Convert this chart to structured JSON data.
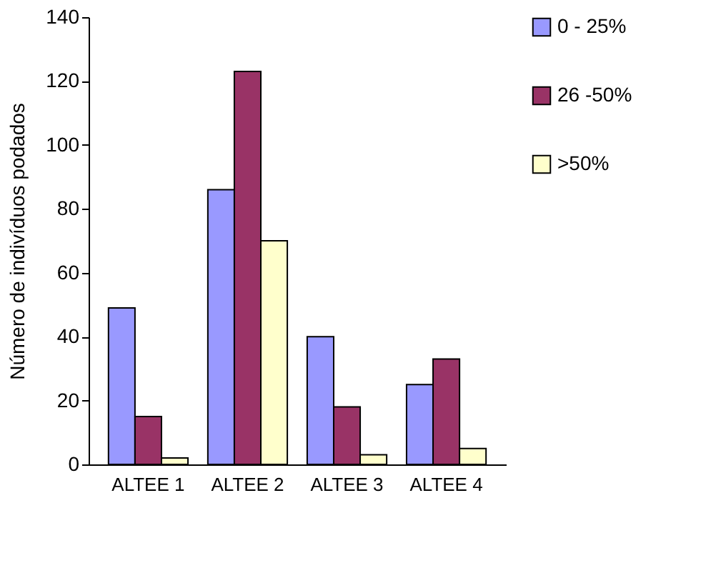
{
  "chart_data": {
    "type": "bar",
    "ylabel": "Número de indivíduos podados",
    "categories": [
      "ALTEE 1",
      "ALTEE 2",
      "ALTEE 3",
      "ALTEE 4"
    ],
    "series": [
      {
        "name": "0 - 25%",
        "color": "#9999ff",
        "values": [
          49,
          86,
          40,
          25
        ]
      },
      {
        "name": "26 -50%",
        "color": "#993366",
        "values": [
          15,
          123,
          18,
          33
        ]
      },
      {
        "name": ">50%",
        "color": "#ffffcc",
        "values": [
          2,
          70,
          3,
          5
        ]
      }
    ],
    "ylim": [
      0,
      140
    ],
    "yticks": [
      0,
      20,
      40,
      60,
      80,
      100,
      120,
      140
    ],
    "grid": false,
    "legend": "top right"
  }
}
